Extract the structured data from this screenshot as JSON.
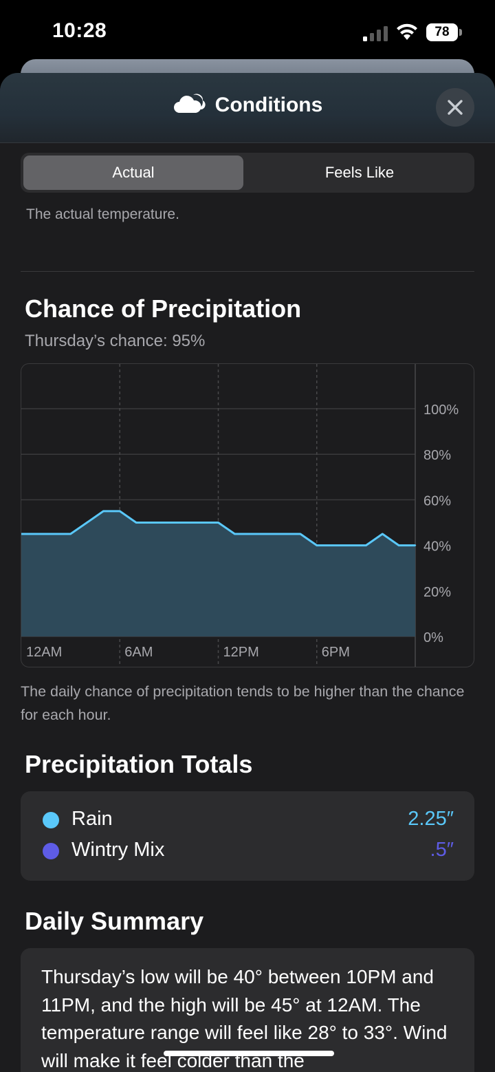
{
  "status_bar": {
    "time": "10:28",
    "battery": "78"
  },
  "header": {
    "title": "Conditions",
    "icon": "cloud-icon",
    "close_icon": "close-icon"
  },
  "segmented": {
    "options": [
      "Actual",
      "Feels Like"
    ],
    "selected": "Actual",
    "description": "The actual temperature."
  },
  "precipitation": {
    "title": "Chance of Precipitation",
    "subtitle": "Thursday’s chance: 95%",
    "note": "The daily chance of precipitation tends to be higher than the chance for each hour."
  },
  "chart_data": {
    "type": "area",
    "x_ticks": [
      "12AM",
      "6AM",
      "12PM",
      "6PM"
    ],
    "y_ticks": [
      "100%",
      "80%",
      "60%",
      "40%",
      "20%",
      "0%"
    ],
    "ylim": [
      0,
      100
    ],
    "x": [
      0,
      1,
      2,
      3,
      4,
      5,
      6,
      7,
      8,
      9,
      10,
      11,
      12,
      13,
      14,
      15,
      16,
      17,
      18,
      19,
      20,
      21,
      22,
      23,
      24
    ],
    "values": [
      45,
      45,
      45,
      45,
      50,
      55,
      55,
      50,
      50,
      50,
      50,
      50,
      50,
      45,
      45,
      45,
      45,
      45,
      40,
      40,
      40,
      40,
      45,
      40,
      40
    ],
    "color": "#5ac8fa",
    "fill_color": "#2e4a5a"
  },
  "totals": {
    "title": "Precipitation Totals",
    "items": [
      {
        "label": "Rain",
        "value": "2.25″",
        "color": "#5ac8fa"
      },
      {
        "label": "Wintry Mix",
        "value": ".5″",
        "color": "#5e5ce6"
      }
    ]
  },
  "summary": {
    "title": "Daily Summary",
    "text": "Thursday’s low will be 40° between 10PM and 11PM, and the high will be 45° at 12AM. The temperature range will feel like 28° to 33°. Wind will make it feel colder than the"
  }
}
